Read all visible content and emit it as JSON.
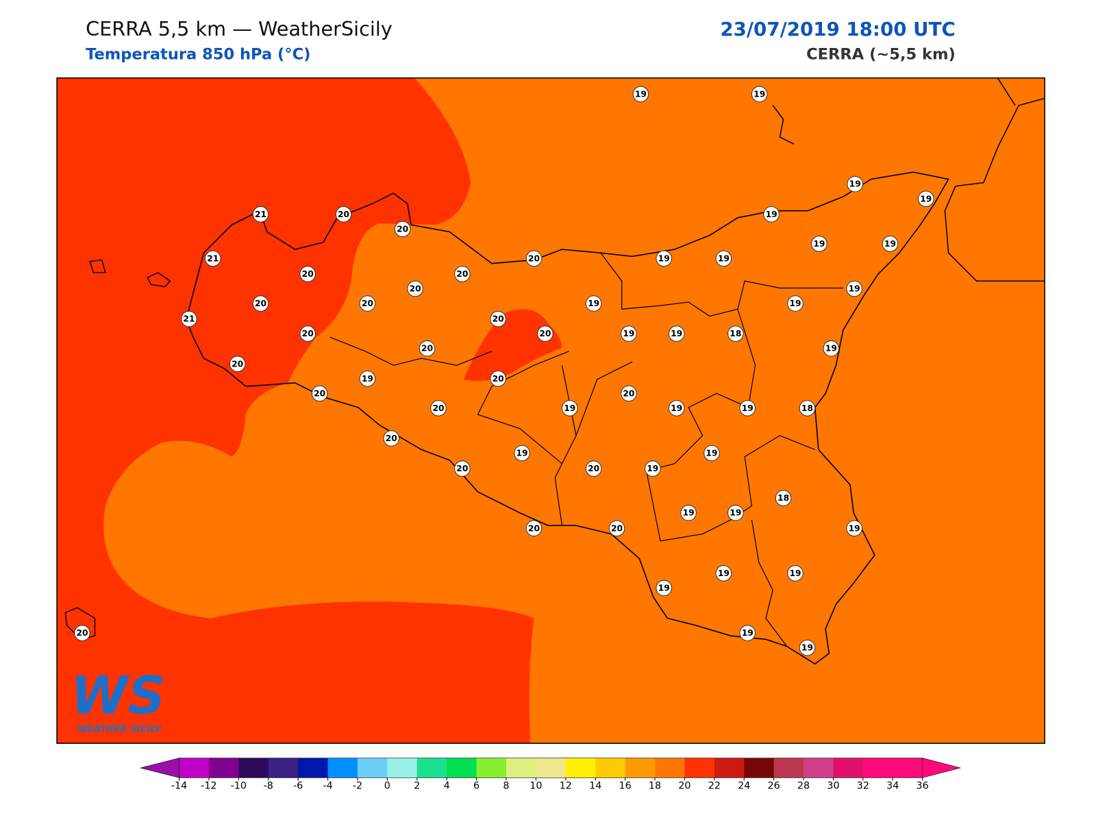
{
  "header": {
    "title": "CERRA 5,5 km — WeatherSicily",
    "subtitle": "Temperatura 850 hPa (°C)",
    "datetime": "23/07/2019 18:00 UTC",
    "model": "CERRA (~5,5 km)"
  },
  "logo": {
    "mark": "WS",
    "text": "WEATHER SICILY"
  },
  "stations": {
    "values": [
      19,
      19,
      19,
      19,
      21,
      20,
      20,
      19,
      21,
      20,
      19,
      19,
      19,
      19,
      20,
      20,
      20,
      19,
      20,
      20,
      19,
      19,
      21,
      20,
      20,
      20,
      19,
      19,
      18,
      20,
      19,
      20,
      19,
      20,
      20,
      20,
      20,
      19,
      19,
      19,
      18,
      20,
      19,
      19,
      20,
      20,
      19,
      18,
      19,
      19,
      20,
      20,
      19,
      19,
      19,
      19,
      19,
      19,
      20
    ]
  },
  "colorbar": {
    "ticks": [
      -14,
      -12,
      -10,
      -8,
      -6,
      -4,
      -2,
      0,
      2,
      4,
      6,
      8,
      10,
      12,
      14,
      16,
      18,
      20,
      22,
      24,
      26,
      28,
      30,
      32,
      34,
      36
    ],
    "colors": [
      "#c000c8",
      "#800090",
      "#2e0a5c",
      "#3b2084",
      "#0018a8",
      "#0090ff",
      "#6ccff6",
      "#98f0e8",
      "#1ae08e",
      "#00e050",
      "#88ee30",
      "#dcf080",
      "#f0e68c",
      "#fff000",
      "#ffcc00",
      "#ff9900",
      "#ff7700",
      "#ff3300",
      "#cc1a10",
      "#780808",
      "#bb3850",
      "#d0408a",
      "#e0106a",
      "#ff0a7a",
      "#ff0a7a"
    ],
    "under": "#9a10a8",
    "over": "#ff0a7a"
  }
}
